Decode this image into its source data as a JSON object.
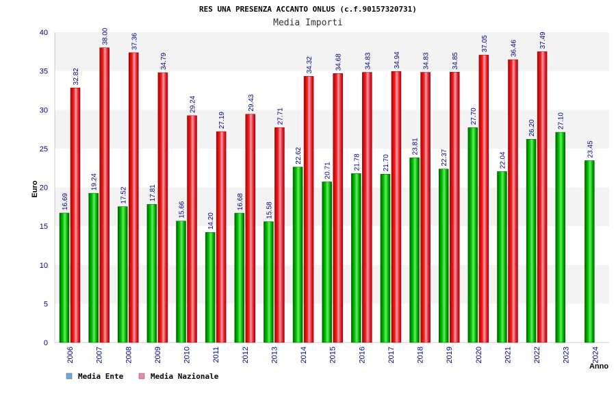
{
  "chart_data": {
    "type": "bar",
    "title": "RES UNA PRESENZA ACCANTO ONLUS (c.f.90157320731)",
    "subtitle": "Media Importi",
    "xlabel": "Anno",
    "ylabel": "Euro",
    "ylim": [
      0,
      40
    ],
    "yticks": [
      0,
      5,
      10,
      15,
      20,
      25,
      30,
      35,
      40
    ],
    "grid": true,
    "legend_position": "bottom-left",
    "categories": [
      "2006",
      "2007",
      "2008",
      "2009",
      "2010",
      "2011",
      "2012",
      "2013",
      "2014",
      "2015",
      "2016",
      "2017",
      "2018",
      "2019",
      "2020",
      "2021",
      "2022",
      "2023",
      "2024"
    ],
    "series": [
      {
        "name": "Media Ente",
        "color": "#00b000",
        "legend_color": "#6fa8dc",
        "values": [
          16.69,
          19.24,
          17.52,
          17.81,
          15.66,
          14.2,
          16.68,
          15.58,
          22.62,
          20.71,
          21.78,
          21.7,
          23.81,
          22.37,
          27.7,
          22.04,
          26.2,
          27.1,
          23.45
        ],
        "labels": [
          "16.69",
          "19.24",
          "17.52",
          "17.81",
          "15.66",
          "14.20",
          "16.68",
          "15.58",
          "22.62",
          "20.71",
          "21.78",
          "21.70",
          "23.81",
          "22.37",
          "27.70",
          "22.04",
          "26.20",
          "27.10",
          "23.45"
        ]
      },
      {
        "name": "Media Nazionale",
        "color": "#e8202a",
        "legend_color": "#e88ab4",
        "values": [
          32.82,
          38.0,
          37.36,
          34.79,
          29.24,
          27.19,
          29.43,
          27.71,
          34.32,
          34.68,
          34.83,
          34.94,
          34.83,
          34.85,
          37.05,
          36.46,
          37.49,
          null,
          null
        ],
        "labels": [
          "32.82",
          "38.00",
          "37.36",
          "34.79",
          "29.24",
          "27.19",
          "29.43",
          "27.71",
          "34.32",
          "34.68",
          "34.83",
          "34.94",
          "34.83",
          "34.85",
          "37.05",
          "36.46",
          "37.49",
          null,
          null
        ]
      }
    ]
  }
}
